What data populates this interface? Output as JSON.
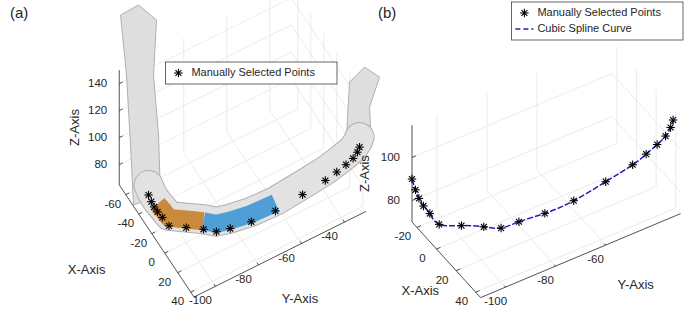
{
  "chart_data": [
    {
      "type": "scatter3d",
      "title": "(a)",
      "x_label": "X-Axis",
      "y_label": "Y-Axis",
      "z_label": "Z-Axis",
      "xlim": [
        -70,
        45
      ],
      "ylim": [
        -110,
        -30
      ],
      "zlim": [
        65,
        150
      ],
      "xticks": [
        -60,
        -40,
        -20,
        0,
        20,
        40
      ],
      "yticks": [
        -100,
        -80,
        -60,
        -40
      ],
      "zticks": [
        80,
        100,
        120,
        140
      ],
      "grid": true,
      "legend": "top right",
      "series": [
        {
          "name": "Manually Selected Points",
          "type": "scatter",
          "color": "#000000",
          "marker": "asterisk",
          "x": [
            -25,
            -24,
            -23,
            -21,
            -17,
            -10,
            0,
            10,
            20,
            28,
            34,
            38,
            40,
            42,
            43,
            44,
            45,
            45,
            45
          ],
          "y": [
            -110,
            -109,
            -108,
            -107,
            -106,
            -105,
            -100,
            -95,
            -92,
            -88,
            -80,
            -70,
            -58,
            -48,
            -43,
            -39,
            -36,
            -34,
            -33
          ],
          "z": [
            90,
            85,
            81,
            78,
            76,
            74,
            76,
            78,
            81,
            86,
            89,
            92,
            96,
            100,
            103,
            106,
            109,
            112,
            115
          ]
        }
      ]
    },
    {
      "type": "scatter3d",
      "title": "(b)",
      "x_label": "X-Axis",
      "y_label": "Y-Axis",
      "z_label": "Z-Axis",
      "xlim": [
        -25,
        45
      ],
      "ylim": [
        -110,
        -30
      ],
      "zlim": [
        70,
        115
      ],
      "xticks": [
        -20,
        0,
        20,
        40
      ],
      "yticks": [
        -100,
        -80,
        -60
      ],
      "zticks": [
        80,
        100
      ],
      "grid": true,
      "legend": "top right",
      "series": [
        {
          "name": "Manually Selected Points",
          "type": "scatter",
          "color": "#000000",
          "marker": "asterisk",
          "x": [
            -25,
            -24,
            -23,
            -21,
            -17,
            -10,
            0,
            10,
            20,
            28,
            34,
            38,
            40,
            42,
            43,
            44,
            45,
            45,
            45
          ],
          "y": [
            -110,
            -109,
            -108,
            -107,
            -106,
            -105,
            -100,
            -95,
            -92,
            -88,
            -80,
            -70,
            -58,
            -48,
            -43,
            -39,
            -36,
            -34,
            -33
          ],
          "z": [
            90,
            85,
            81,
            78,
            76,
            74,
            76,
            78,
            81,
            86,
            89,
            92,
            96,
            100,
            103,
            106,
            109,
            112,
            115
          ]
        },
        {
          "name": "Cubic Spline Curve",
          "type": "line",
          "color": "#1f1fbf",
          "line_style": "dashed",
          "x": [
            -25,
            -24,
            -23,
            -21,
            -17,
            -10,
            0,
            10,
            20,
            28,
            34,
            38,
            40,
            42,
            43,
            44,
            45,
            45,
            45
          ],
          "y": [
            -110,
            -109,
            -108,
            -107,
            -106,
            -105,
            -100,
            -95,
            -92,
            -88,
            -80,
            -70,
            -58,
            -48,
            -43,
            -39,
            -36,
            -34,
            -33
          ],
          "z": [
            90,
            85,
            81,
            78,
            76,
            74,
            76,
            78,
            81,
            86,
            89,
            92,
            96,
            100,
            103,
            106,
            109,
            112,
            115
          ]
        }
      ]
    }
  ]
}
